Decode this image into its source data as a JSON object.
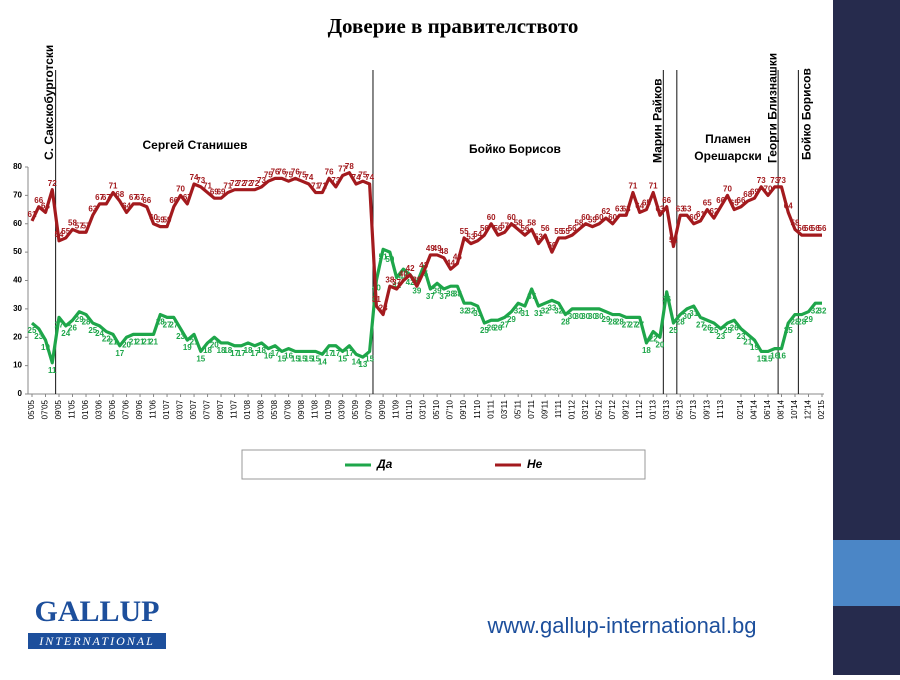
{
  "chart_data": {
    "type": "line",
    "title": "Доверие в правителството",
    "ylim": [
      0,
      80
    ],
    "yticks": [
      0,
      10,
      20,
      30,
      40,
      50,
      60,
      70,
      80
    ],
    "grid": false,
    "legend_position": "bottom",
    "annotations": [
      "С. Сакскобурготски",
      "Сергей Станишев",
      "Бойко Борисов",
      "Марин Райков",
      "Пламен Орешарски",
      "Георги Близнашки",
      "Бойко Борисов"
    ],
    "categories": [
      "05'05",
      null,
      "07'05",
      null,
      "09'05",
      null,
      "11'05",
      null,
      "01'06",
      null,
      "03'06",
      null,
      "05'06",
      null,
      "07'06",
      null,
      "09'06",
      null,
      "11'06",
      null,
      "01'07",
      null,
      "03'07",
      null,
      "05'07",
      null,
      "07'07",
      null,
      "09'07",
      null,
      "11'07",
      null,
      "01'08",
      null,
      "03'08",
      null,
      "05'08",
      null,
      "07'08",
      null,
      "09'08",
      null,
      "11'08",
      null,
      "01'09",
      null,
      "03'09",
      null,
      "05'09",
      null,
      "07'09",
      null,
      "09'09",
      null,
      "11'09",
      null,
      "01'10",
      null,
      "03'10",
      null,
      "05'10",
      null,
      "07'10",
      null,
      "09'10",
      null,
      "11'10",
      null,
      "01'11",
      null,
      "03'11",
      null,
      "05'11",
      null,
      "07'11",
      null,
      "09'11",
      null,
      "11'11",
      null,
      "01'12",
      null,
      "03'12",
      null,
      "05'12",
      null,
      "07'12",
      null,
      "09'12",
      null,
      "11'12",
      null,
      "01'13",
      null,
      "03'13",
      null,
      "05'13",
      null,
      "07'13",
      null,
      "09'13",
      null,
      "11'13",
      null,
      null,
      "02'14",
      null,
      "04'14",
      null,
      "06'14",
      null,
      "08'14",
      null,
      "10'14",
      null,
      "12'14",
      null,
      "02'15"
    ],
    "series": [
      {
        "name": "Да",
        "color": "#1ea64a",
        "values": [
          25,
          23,
          19,
          11,
          27,
          24,
          26,
          29,
          28,
          25,
          24,
          22,
          21,
          17,
          20,
          21,
          21,
          21,
          21,
          28,
          27,
          27,
          23,
          19,
          21,
          15,
          18,
          20,
          18,
          18,
          17,
          17,
          18,
          17,
          18,
          16,
          17,
          15,
          16,
          15,
          15,
          15,
          15,
          14,
          17,
          17,
          15,
          17,
          14,
          13,
          15,
          40,
          51,
          50,
          41,
          44,
          42,
          39,
          45,
          37,
          39,
          37,
          38,
          38,
          32,
          32,
          31,
          25,
          26,
          26,
          27,
          29,
          32,
          31,
          37,
          31,
          32,
          33,
          32,
          28,
          30,
          30,
          30,
          30,
          30,
          29,
          28,
          28,
          27,
          27,
          27,
          18,
          22,
          20,
          36,
          25,
          28,
          30,
          31,
          27,
          26,
          25,
          23,
          25,
          26,
          23,
          21,
          19,
          15,
          15,
          16,
          16,
          25,
          28,
          28,
          29,
          32,
          32
        ]
      },
      {
        "name": "Не",
        "color": "#a31a1e",
        "values": [
          61,
          66,
          64,
          72,
          54,
          55,
          58,
          57,
          57,
          63,
          67,
          67,
          71,
          68,
          64,
          67,
          67,
          66,
          60,
          59,
          59,
          66,
          70,
          67,
          74,
          73,
          71,
          69,
          69,
          71,
          72,
          72,
          72,
          72,
          73,
          75,
          76,
          76,
          75,
          76,
          75,
          74,
          71,
          71,
          76,
          73,
          77,
          78,
          74,
          75,
          74,
          31,
          28,
          38,
          37,
          40,
          42,
          38,
          43,
          49,
          49,
          48,
          44,
          46,
          55,
          53,
          54,
          56,
          60,
          56,
          57,
          60,
          58,
          56,
          58,
          53,
          56,
          50,
          55,
          55,
          56,
          58,
          60,
          59,
          60,
          62,
          60,
          63,
          63,
          71,
          64,
          65,
          71,
          63,
          66,
          52,
          63,
          63,
          60,
          61,
          65,
          62,
          66,
          70,
          65,
          66,
          68,
          69,
          73,
          70,
          73,
          73,
          64,
          58,
          56,
          56,
          56,
          56
        ]
      }
    ]
  },
  "footer": {
    "logo_top": "GALLUP",
    "logo_bottom": "INTERNATIONAL",
    "url": "www.gallup-international.bg"
  }
}
